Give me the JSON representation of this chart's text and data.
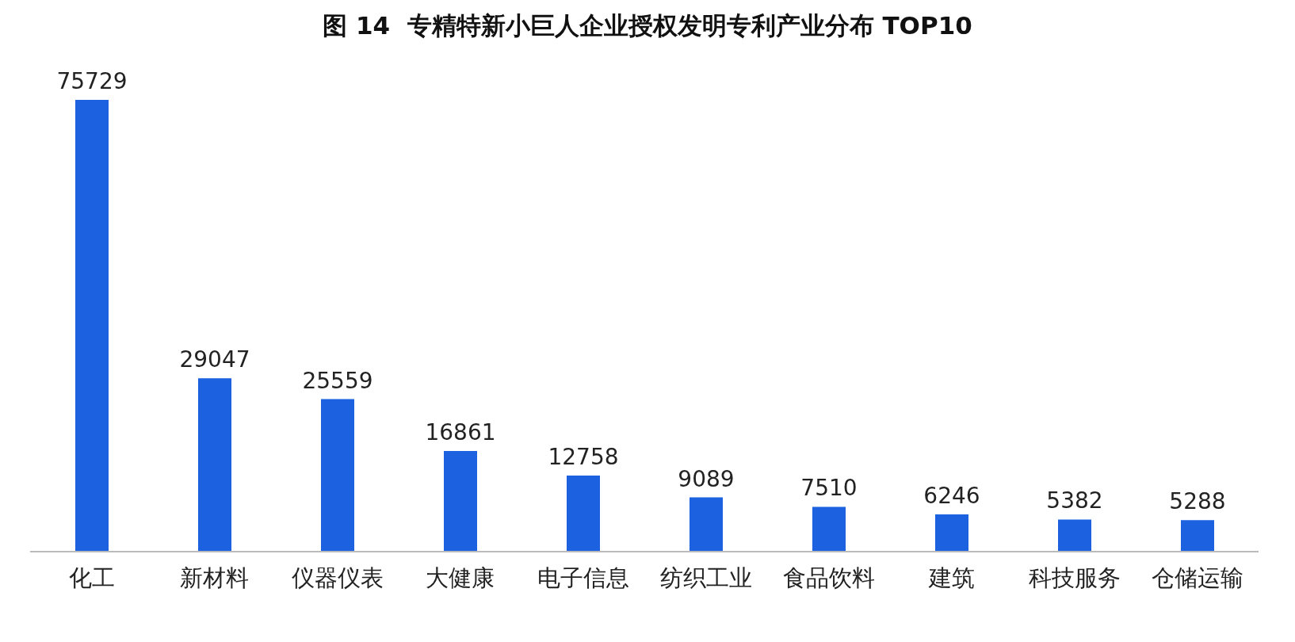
{
  "chart_data": {
    "type": "bar",
    "title": "图 14  专精特新小巨人企业授权发明专利产业分布 TOP10",
    "categories": [
      "化工",
      "新材料",
      "仪器仪表",
      "大健康",
      "电子信息",
      "纺织工业",
      "食品饮料",
      "建筑",
      "科技服务",
      "仓储运输"
    ],
    "values": [
      75729,
      29047,
      25559,
      16861,
      12758,
      9089,
      7510,
      6246,
      5382,
      5288
    ],
    "color": "#1c62e0",
    "data_labels": true
  }
}
